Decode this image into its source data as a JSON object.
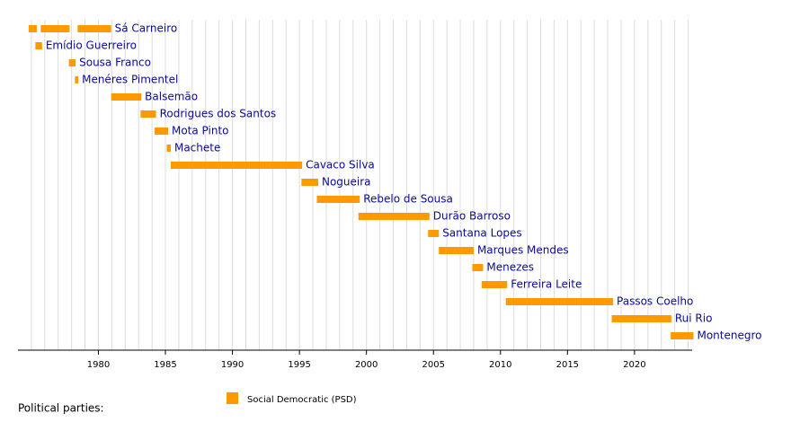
{
  "chart_data": {
    "type": "timeline",
    "rows": [
      {
        "label": "Sá Carneiro",
        "spans": [
          [
            1974.8,
            1975.4
          ],
          [
            1975.7,
            1977.85
          ],
          [
            1978.45,
            1980.95
          ]
        ]
      },
      {
        "label": "Emídio Guerreiro",
        "spans": [
          [
            1975.3,
            1975.8
          ]
        ]
      },
      {
        "label": "Sousa Franco",
        "spans": [
          [
            1977.8,
            1978.3
          ]
        ]
      },
      {
        "label": "Menéres Pimentel",
        "spans": [
          [
            1978.25,
            1978.5
          ]
        ]
      },
      {
        "label": "Balsemão",
        "spans": [
          [
            1980.95,
            1983.2
          ]
        ]
      },
      {
        "label": "Rodrigues dos Santos",
        "spans": [
          [
            1983.15,
            1984.3
          ]
        ]
      },
      {
        "label": "Mota Pinto",
        "spans": [
          [
            1984.2,
            1985.2
          ]
        ]
      },
      {
        "label": "Machete",
        "spans": [
          [
            1985.1,
            1985.4
          ]
        ]
      },
      {
        "label": "Cavaco Silva",
        "spans": [
          [
            1985.4,
            1995.2
          ]
        ]
      },
      {
        "label": "Nogueira",
        "spans": [
          [
            1995.15,
            1996.4
          ]
        ]
      },
      {
        "label": "Rebelo de Sousa",
        "spans": [
          [
            1996.3,
            1999.5
          ]
        ]
      },
      {
        "label": "Durão Barroso",
        "spans": [
          [
            1999.4,
            2004.7
          ]
        ]
      },
      {
        "label": "Santana Lopes",
        "spans": [
          [
            2004.6,
            2005.4
          ]
        ]
      },
      {
        "label": "Marques Mendes",
        "spans": [
          [
            2005.4,
            2008.0
          ]
        ]
      },
      {
        "label": "Menezes",
        "spans": [
          [
            2007.9,
            2008.7
          ]
        ]
      },
      {
        "label": "Ferreira Leite",
        "spans": [
          [
            2008.6,
            2010.5
          ]
        ]
      },
      {
        "label": "Passos Coelho",
        "spans": [
          [
            2010.4,
            2018.4
          ]
        ]
      },
      {
        "label": "Rui Rio",
        "spans": [
          [
            2018.3,
            2022.75
          ]
        ]
      },
      {
        "label": "Montenegro",
        "spans": [
          [
            2022.7,
            2024.4
          ]
        ]
      }
    ],
    "color": "#ff9900",
    "xlim": [
      1974,
      2024.3
    ],
    "xticks": [
      1980,
      1985,
      1990,
      1995,
      2000,
      2005,
      2010,
      2015,
      2020
    ],
    "xgrid": [
      1975,
      1976,
      1977,
      1978,
      1979,
      1980,
      1981,
      1982,
      1983,
      1984,
      1985,
      1986,
      1987,
      1988,
      1989,
      1990,
      1991,
      1992,
      1993,
      1994,
      1995,
      1996,
      1997,
      1998,
      1999,
      2000,
      2001,
      2002,
      2003,
      2004,
      2005,
      2006,
      2007,
      2008,
      2009,
      2010,
      2011,
      2012,
      2013,
      2014,
      2015,
      2016,
      2017,
      2018,
      2019,
      2020,
      2021,
      2022,
      2023,
      2024
    ],
    "legend_title": "Political parties:",
    "legend": [
      {
        "name": "Social Democratic (PSD)",
        "color": "#ff9900"
      }
    ]
  }
}
